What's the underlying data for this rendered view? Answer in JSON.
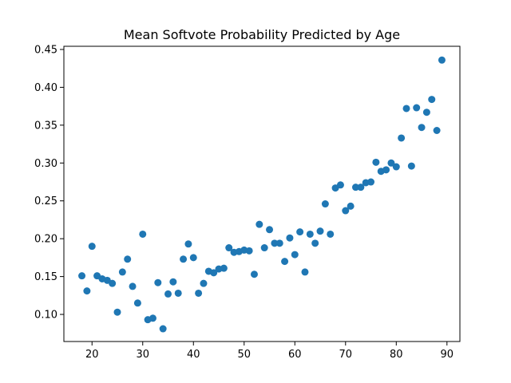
{
  "chart_data": {
    "type": "scatter",
    "title": "Mean Softvote Probability Predicted by Age",
    "xlabel": "",
    "ylabel": "",
    "xlim": [
      14.45,
      92.55
    ],
    "ylim": [
      0.0642,
      0.4542
    ],
    "xticks": [
      20,
      30,
      40,
      50,
      60,
      70,
      80,
      90
    ],
    "yticks": [
      0.1,
      0.15,
      0.2,
      0.25,
      0.3,
      0.35,
      0.4,
      0.45
    ],
    "xtick_labels": [
      "20",
      "30",
      "40",
      "50",
      "60",
      "70",
      "80",
      "90"
    ],
    "ytick_labels": [
      "0.10",
      "0.15",
      "0.20",
      "0.25",
      "0.30",
      "0.35",
      "0.40",
      "0.45"
    ],
    "grid": false,
    "marker_color": "#1f77b4",
    "points": [
      {
        "x": 18,
        "y": 0.151
      },
      {
        "x": 19,
        "y": 0.131
      },
      {
        "x": 20,
        "y": 0.19
      },
      {
        "x": 21,
        "y": 0.151
      },
      {
        "x": 22,
        "y": 0.147
      },
      {
        "x": 23,
        "y": 0.145
      },
      {
        "x": 24,
        "y": 0.141
      },
      {
        "x": 25,
        "y": 0.103
      },
      {
        "x": 26,
        "y": 0.156
      },
      {
        "x": 27,
        "y": 0.173
      },
      {
        "x": 28,
        "y": 0.137
      },
      {
        "x": 29,
        "y": 0.115
      },
      {
        "x": 30,
        "y": 0.206
      },
      {
        "x": 31,
        "y": 0.093
      },
      {
        "x": 32,
        "y": 0.095
      },
      {
        "x": 33,
        "y": 0.142
      },
      {
        "x": 34,
        "y": 0.081
      },
      {
        "x": 35,
        "y": 0.127
      },
      {
        "x": 36,
        "y": 0.143
      },
      {
        "x": 37,
        "y": 0.128
      },
      {
        "x": 38,
        "y": 0.173
      },
      {
        "x": 39,
        "y": 0.193
      },
      {
        "x": 40,
        "y": 0.175
      },
      {
        "x": 41,
        "y": 0.128
      },
      {
        "x": 42,
        "y": 0.141
      },
      {
        "x": 43,
        "y": 0.157
      },
      {
        "x": 44,
        "y": 0.155
      },
      {
        "x": 45,
        "y": 0.16
      },
      {
        "x": 46,
        "y": 0.161
      },
      {
        "x": 47,
        "y": 0.188
      },
      {
        "x": 48,
        "y": 0.182
      },
      {
        "x": 49,
        "y": 0.183
      },
      {
        "x": 50,
        "y": 0.185
      },
      {
        "x": 51,
        "y": 0.184
      },
      {
        "x": 52,
        "y": 0.153
      },
      {
        "x": 53,
        "y": 0.219
      },
      {
        "x": 54,
        "y": 0.188
      },
      {
        "x": 55,
        "y": 0.212
      },
      {
        "x": 56,
        "y": 0.194
      },
      {
        "x": 57,
        "y": 0.194
      },
      {
        "x": 58,
        "y": 0.17
      },
      {
        "x": 59,
        "y": 0.201
      },
      {
        "x": 60,
        "y": 0.179
      },
      {
        "x": 61,
        "y": 0.209
      },
      {
        "x": 62,
        "y": 0.156
      },
      {
        "x": 63,
        "y": 0.206
      },
      {
        "x": 64,
        "y": 0.194
      },
      {
        "x": 65,
        "y": 0.21
      },
      {
        "x": 66,
        "y": 0.246
      },
      {
        "x": 67,
        "y": 0.206
      },
      {
        "x": 68,
        "y": 0.267
      },
      {
        "x": 69,
        "y": 0.271
      },
      {
        "x": 70,
        "y": 0.237
      },
      {
        "x": 71,
        "y": 0.243
      },
      {
        "x": 72,
        "y": 0.268
      },
      {
        "x": 73,
        "y": 0.268
      },
      {
        "x": 74,
        "y": 0.274
      },
      {
        "x": 75,
        "y": 0.275
      },
      {
        "x": 76,
        "y": 0.301
      },
      {
        "x": 77,
        "y": 0.289
      },
      {
        "x": 78,
        "y": 0.291
      },
      {
        "x": 79,
        "y": 0.3
      },
      {
        "x": 80,
        "y": 0.295
      },
      {
        "x": 81,
        "y": 0.333
      },
      {
        "x": 82,
        "y": 0.372
      },
      {
        "x": 83,
        "y": 0.296
      },
      {
        "x": 84,
        "y": 0.373
      },
      {
        "x": 85,
        "y": 0.347
      },
      {
        "x": 86,
        "y": 0.367
      },
      {
        "x": 87,
        "y": 0.384
      },
      {
        "x": 88,
        "y": 0.343
      },
      {
        "x": 89,
        "y": 0.436
      }
    ]
  }
}
